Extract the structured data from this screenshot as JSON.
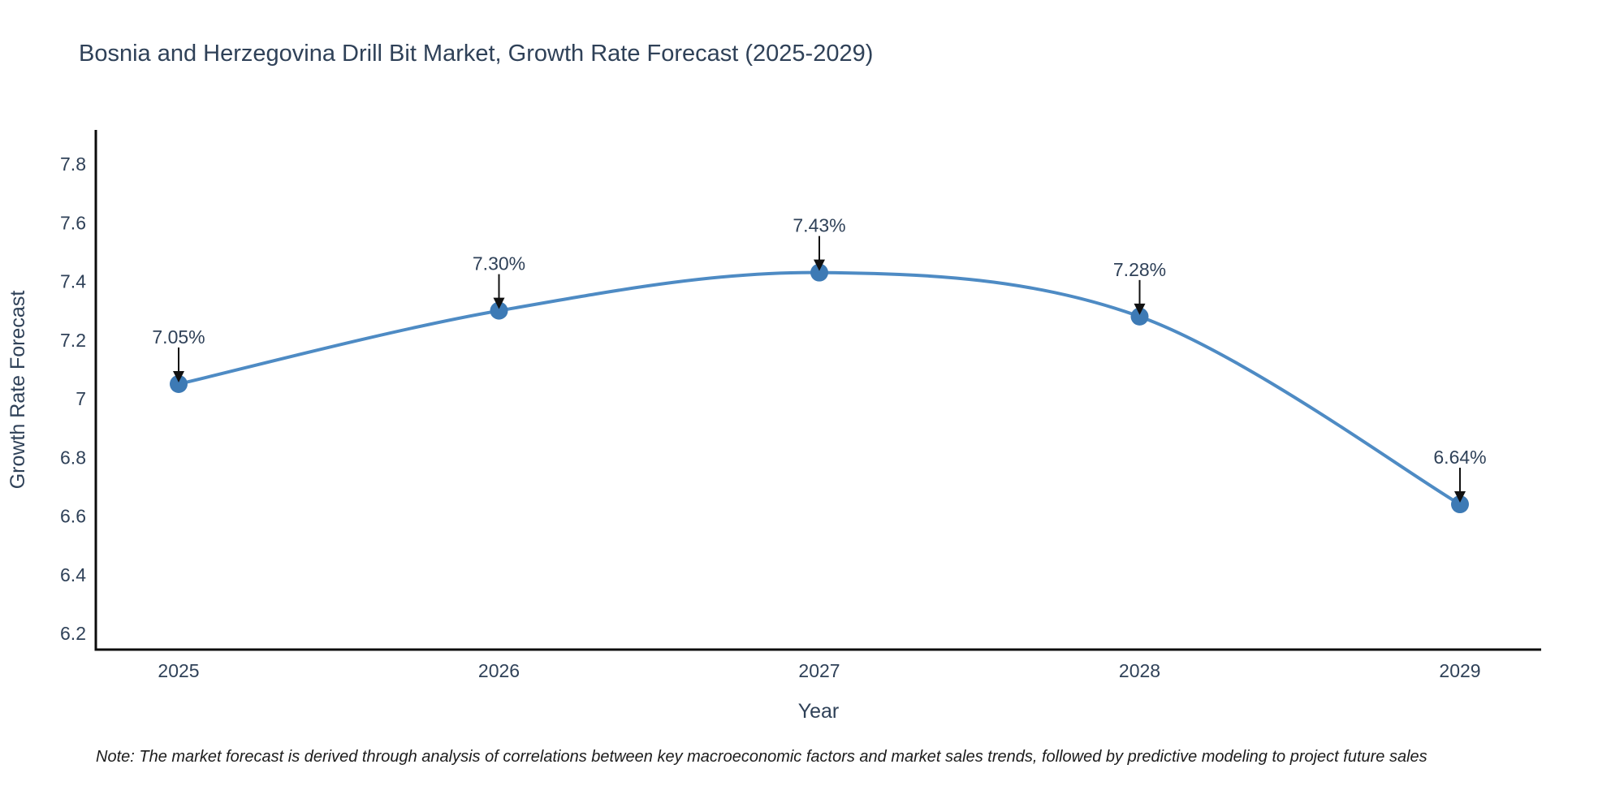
{
  "title": "Bosnia and Herzegovina Drill Bit Market, Growth Rate Forecast (2025-2029)",
  "note": "Note: The market forecast is derived through analysis of correlations between key macroeconomic factors and market sales trends, followed by predictive modeling to project future sales",
  "chart_data": {
    "type": "line",
    "title": "Bosnia and Herzegovina Drill Bit Market, Growth Rate Forecast (2025-2029)",
    "x": [
      2025,
      2026,
      2027,
      2028,
      2029
    ],
    "series": [
      {
        "name": "Growth Rate Forecast",
        "values": [
          7.05,
          7.3,
          7.43,
          7.28,
          6.64
        ]
      }
    ],
    "annotations": [
      "7.05%",
      "7.30%",
      "7.43%",
      "7.28%",
      "6.64%"
    ],
    "xlabel": "Year",
    "ylabel": "Growth Rate Forecast",
    "yticks": [
      6.2,
      6.4,
      6.6,
      6.8,
      7,
      7.2,
      7.4,
      7.6,
      7.8
    ],
    "ylim": [
      6.14,
      7.97
    ],
    "grid": false,
    "legend": "none",
    "line_color": "#4e8bc4",
    "marker_color": "#3d7ab5",
    "arrow_color": "#111111",
    "text_color": "#2f4158",
    "axis_color": "#0d0d0d"
  }
}
